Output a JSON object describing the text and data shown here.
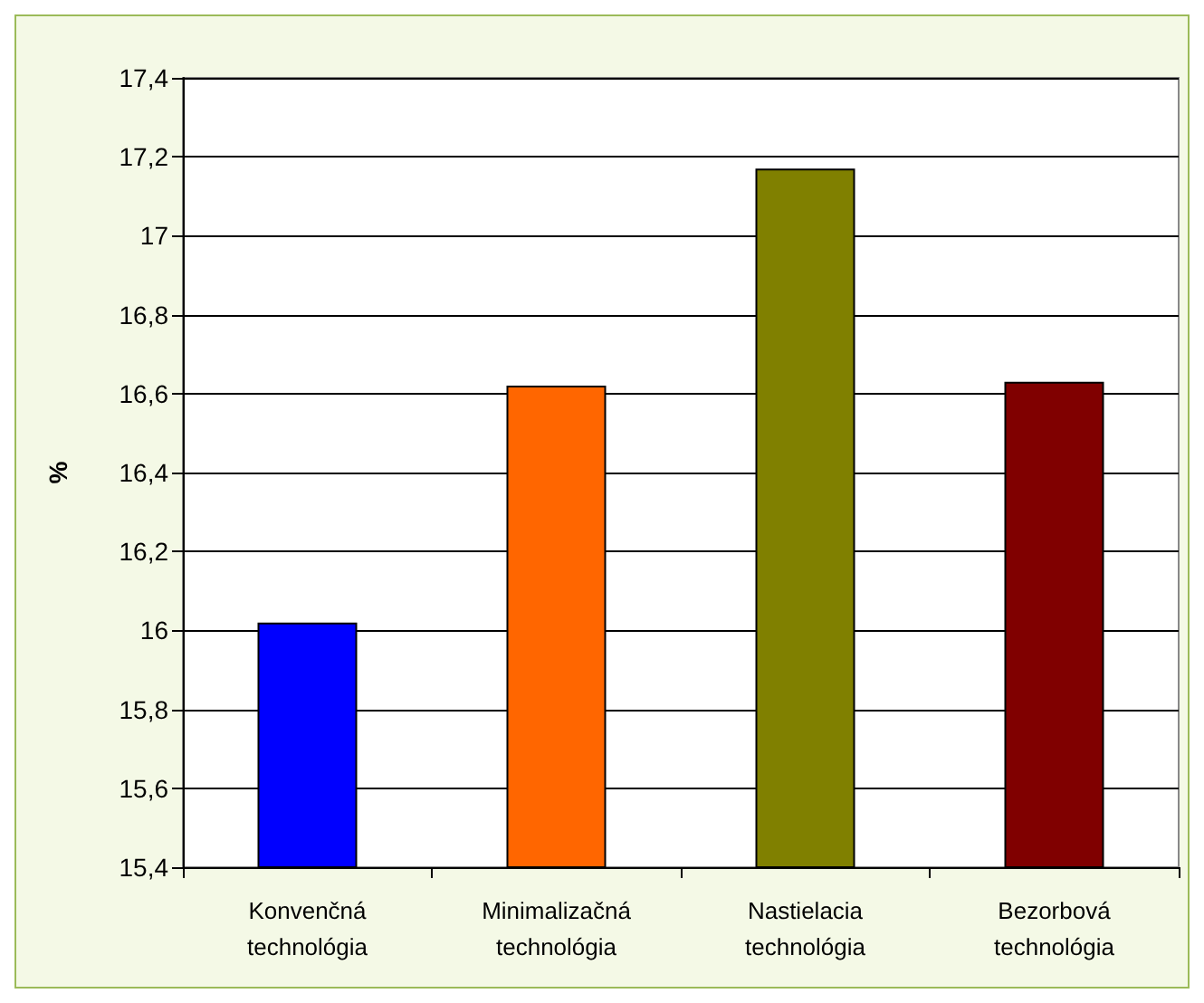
{
  "chart_data": {
    "type": "bar",
    "ylabel": "%",
    "categories": [
      "Konvenčná technológia",
      "Minimalizačná technológia",
      "Nastielacia technológia",
      "Bezorbová technológia"
    ],
    "values": [
      16.02,
      16.62,
      17.17,
      16.63
    ],
    "colors": [
      "#0000ff",
      "#ff6600",
      "#808000",
      "#800000"
    ],
    "ylim": [
      15.4,
      17.4
    ],
    "yticks": [
      {
        "value": 15.4,
        "label": "15,4"
      },
      {
        "value": 15.6,
        "label": "15,6"
      },
      {
        "value": 15.8,
        "label": "15,8"
      },
      16,
      {
        "value": 16.2,
        "label": "16,2"
      },
      {
        "value": 16.4,
        "label": "16,4"
      },
      {
        "value": 16.6,
        "label": "16,6"
      },
      {
        "value": 16.8,
        "label": "16,8"
      },
      17,
      {
        "value": 17.2,
        "label": "17,2"
      },
      {
        "value": 17.4,
        "label": "17,4"
      }
    ],
    "grid": "y"
  }
}
